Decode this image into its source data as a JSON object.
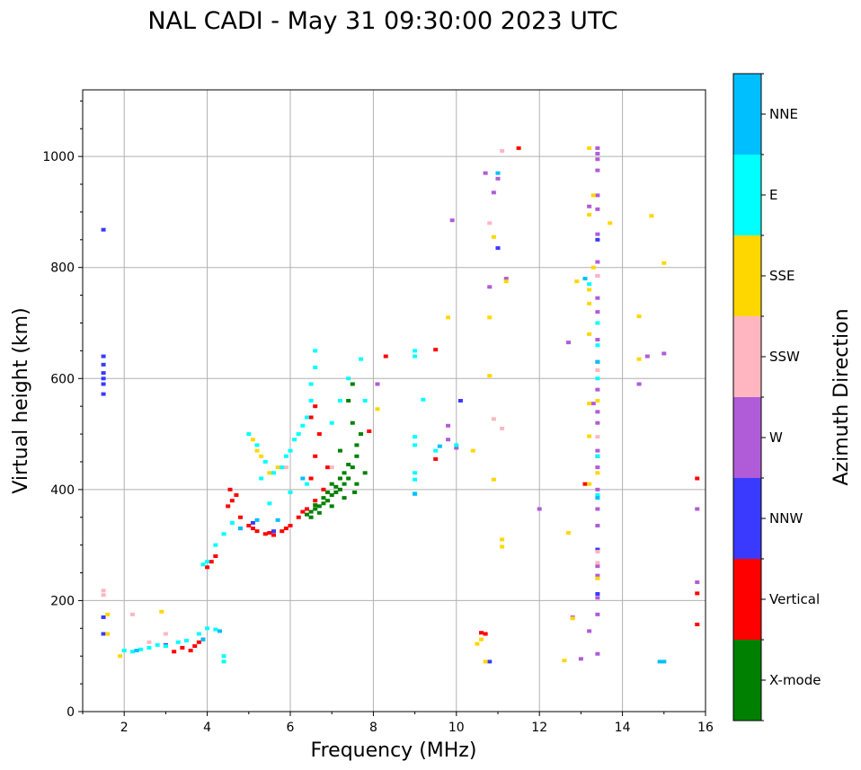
{
  "chart_data": {
    "type": "scatter",
    "title": "NAL CADI - May 31 09:30:00 2023 UTC",
    "xlabel": "Frequency (MHz)",
    "ylabel": "Virtual height (km)",
    "xlim": [
      1,
      16
    ],
    "ylim": [
      0,
      1120
    ],
    "xticks": [
      2,
      4,
      6,
      8,
      10,
      12,
      14,
      16
    ],
    "yticks": [
      0,
      200,
      400,
      600,
      800,
      1000
    ],
    "grid": true,
    "colorbar": {
      "label": "Azimuth Direction",
      "categories": [
        {
          "name": "X-mode",
          "color": "#008000"
        },
        {
          "name": "Vertical",
          "color": "#ff0000"
        },
        {
          "name": "NNW",
          "color": "#3a3aff"
        },
        {
          "name": "W",
          "color": "#b05cd8"
        },
        {
          "name": "SSW",
          "color": "#ffb6c1"
        },
        {
          "name": "SSE",
          "color": "#ffd700"
        },
        {
          "name": "E",
          "color": "#00ffff"
        },
        {
          "name": "NNE",
          "color": "#00bfff"
        }
      ]
    },
    "series": [
      {
        "name": "X-mode",
        "points": [
          [
            6.4,
            355
          ],
          [
            6.5,
            360
          ],
          [
            6.6,
            365
          ],
          [
            6.7,
            370
          ],
          [
            6.8,
            375
          ],
          [
            6.9,
            380
          ],
          [
            7.0,
            390
          ],
          [
            7.1,
            395
          ],
          [
            7.2,
            400
          ],
          [
            7.3,
            410
          ],
          [
            7.4,
            420
          ],
          [
            7.5,
            440
          ],
          [
            7.6,
            460
          ],
          [
            6.6,
            372
          ],
          [
            6.8,
            385
          ],
          [
            7.0,
            410
          ],
          [
            7.2,
            420
          ],
          [
            7.4,
            445
          ],
          [
            7.6,
            480
          ],
          [
            7.7,
            500
          ],
          [
            7.5,
            520
          ],
          [
            7.3,
            430
          ],
          [
            7.1,
            405
          ],
          [
            6.9,
            395
          ],
          [
            7.8,
            430
          ],
          [
            7.4,
            560
          ],
          [
            7.5,
            590
          ],
          [
            7.2,
            470
          ],
          [
            7.6,
            410
          ],
          [
            6.5,
            350
          ],
          [
            6.7,
            358
          ],
          [
            7.0,
            370
          ],
          [
            7.3,
            385
          ],
          [
            7.55,
            395
          ]
        ]
      },
      {
        "name": "Vertical",
        "points": [
          [
            4.5,
            370
          ],
          [
            4.6,
            380
          ],
          [
            4.7,
            390
          ],
          [
            4.8,
            350
          ],
          [
            5.0,
            335
          ],
          [
            5.2,
            325
          ],
          [
            5.4,
            320
          ],
          [
            5.6,
            318
          ],
          [
            5.8,
            325
          ],
          [
            6.0,
            335
          ],
          [
            6.2,
            350
          ],
          [
            6.4,
            365
          ],
          [
            6.6,
            380
          ],
          [
            6.8,
            400
          ],
          [
            6.5,
            420
          ],
          [
            6.6,
            460
          ],
          [
            6.7,
            500
          ],
          [
            6.5,
            530
          ],
          [
            6.6,
            550
          ],
          [
            4.55,
            400
          ],
          [
            5.1,
            330
          ],
          [
            5.5,
            322
          ],
          [
            5.9,
            330
          ],
          [
            6.3,
            360
          ],
          [
            3.6,
            110
          ],
          [
            3.7,
            118
          ],
          [
            3.8,
            125
          ],
          [
            3.9,
            130
          ],
          [
            3.4,
            115
          ],
          [
            3.2,
            108
          ],
          [
            13.1,
            410
          ],
          [
            15.8,
            420
          ],
          [
            15.8,
            213
          ],
          [
            15.8,
            157
          ],
          [
            10.6,
            142
          ],
          [
            10.7,
            140
          ],
          [
            11.5,
            1015
          ],
          [
            9.5,
            455
          ],
          [
            9.5,
            652
          ],
          [
            7.9,
            505
          ],
          [
            8.3,
            640
          ],
          [
            6.9,
            440
          ],
          [
            4.0,
            260
          ],
          [
            4.1,
            270
          ],
          [
            4.2,
            280
          ]
        ]
      },
      {
        "name": "NNW",
        "points": [
          [
            1.5,
            640
          ],
          [
            1.5,
            625
          ],
          [
            1.5,
            610
          ],
          [
            1.5,
            600
          ],
          [
            1.5,
            590
          ],
          [
            1.5,
            572
          ],
          [
            1.5,
            868
          ],
          [
            1.5,
            170
          ],
          [
            1.5,
            140
          ],
          [
            11.0,
            835
          ],
          [
            13.4,
            850
          ],
          [
            13.4,
            292
          ],
          [
            13.4,
            212
          ],
          [
            13.4,
            460
          ],
          [
            10.8,
            90
          ],
          [
            4.8,
            330
          ],
          [
            5.1,
            340
          ],
          [
            10.1,
            560
          ],
          [
            3.0,
            120
          ],
          [
            5.6,
            325
          ]
        ]
      },
      {
        "name": "W",
        "points": [
          [
            13.4,
            1015
          ],
          [
            13.4,
            1005
          ],
          [
            13.4,
            995
          ],
          [
            13.4,
            975
          ],
          [
            13.4,
            930
          ],
          [
            13.4,
            905
          ],
          [
            13.4,
            860
          ],
          [
            13.4,
            810
          ],
          [
            13.4,
            785
          ],
          [
            13.4,
            745
          ],
          [
            13.4,
            720
          ],
          [
            13.4,
            670
          ],
          [
            13.4,
            630
          ],
          [
            13.4,
            580
          ],
          [
            13.4,
            540
          ],
          [
            13.4,
            520
          ],
          [
            13.4,
            470
          ],
          [
            13.4,
            440
          ],
          [
            13.4,
            400
          ],
          [
            13.4,
            365
          ],
          [
            13.4,
            335
          ],
          [
            13.4,
            262
          ],
          [
            13.4,
            245
          ],
          [
            13.4,
            205
          ],
          [
            13.4,
            175
          ],
          [
            13.4,
            104
          ],
          [
            13.2,
            910
          ],
          [
            13.3,
            555
          ],
          [
            12.7,
            665
          ],
          [
            12.8,
            170
          ],
          [
            13.2,
            145
          ],
          [
            13.0,
            95
          ],
          [
            10.7,
            970
          ],
          [
            11.0,
            960
          ],
          [
            10.9,
            935
          ],
          [
            10.8,
            765
          ],
          [
            11.2,
            780
          ],
          [
            14.4,
            590
          ],
          [
            14.6,
            640
          ],
          [
            15.0,
            645
          ],
          [
            15.8,
            365
          ],
          [
            15.8,
            233
          ],
          [
            9.9,
            885
          ],
          [
            9.8,
            490
          ],
          [
            10.0,
            475
          ],
          [
            8.1,
            590
          ],
          [
            12.0,
            365
          ],
          [
            9.8,
            515
          ]
        ]
      },
      {
        "name": "SSW",
        "points": [
          [
            13.4,
            785
          ],
          [
            13.4,
            288
          ],
          [
            13.4,
            268
          ],
          [
            11.1,
            1010
          ],
          [
            10.8,
            880
          ],
          [
            11.1,
            510
          ],
          [
            10.9,
            527
          ],
          [
            13.4,
            615
          ],
          [
            13.4,
            495
          ],
          [
            1.5,
            218
          ],
          [
            1.5,
            210
          ],
          [
            2.2,
            175
          ],
          [
            2.6,
            125
          ],
          [
            3.0,
            140
          ],
          [
            5.9,
            440
          ],
          [
            7.0,
            440
          ]
        ]
      },
      {
        "name": "SSE",
        "points": [
          [
            13.2,
            1015
          ],
          [
            13.3,
            930
          ],
          [
            13.2,
            895
          ],
          [
            13.7,
            880
          ],
          [
            14.7,
            893
          ],
          [
            15.0,
            808
          ],
          [
            13.3,
            800
          ],
          [
            12.9,
            775
          ],
          [
            13.2,
            760
          ],
          [
            13.2,
            735
          ],
          [
            13.2,
            680
          ],
          [
            14.4,
            712
          ],
          [
            14.4,
            635
          ],
          [
            13.2,
            555
          ],
          [
            13.4,
            560
          ],
          [
            13.2,
            496
          ],
          [
            13.4,
            430
          ],
          [
            13.2,
            410
          ],
          [
            13.4,
            240
          ],
          [
            12.7,
            322
          ],
          [
            12.8,
            168
          ],
          [
            12.6,
            92
          ],
          [
            11.1,
            310
          ],
          [
            11.1,
            297
          ],
          [
            10.8,
            710
          ],
          [
            10.8,
            605
          ],
          [
            10.9,
            418
          ],
          [
            10.9,
            855
          ],
          [
            11.2,
            775
          ],
          [
            10.4,
            470
          ],
          [
            10.6,
            130
          ],
          [
            10.5,
            122
          ],
          [
            10.7,
            90
          ],
          [
            9.8,
            710
          ],
          [
            8.1,
            545
          ],
          [
            5.1,
            490
          ],
          [
            5.3,
            460
          ],
          [
            5.5,
            430
          ],
          [
            5.2,
            470
          ],
          [
            5.7,
            440
          ],
          [
            1.9,
            100
          ],
          [
            1.6,
            140
          ],
          [
            1.6,
            175
          ],
          [
            2.9,
            180
          ]
        ]
      },
      {
        "name": "E",
        "points": [
          [
            5.0,
            500
          ],
          [
            5.2,
            480
          ],
          [
            5.4,
            450
          ],
          [
            5.6,
            430
          ],
          [
            5.8,
            440
          ],
          [
            6.0,
            470
          ],
          [
            6.2,
            500
          ],
          [
            6.4,
            530
          ],
          [
            6.5,
            560
          ],
          [
            6.5,
            590
          ],
          [
            6.6,
            620
          ],
          [
            6.6,
            650
          ],
          [
            7.0,
            520
          ],
          [
            7.2,
            560
          ],
          [
            7.4,
            600
          ],
          [
            7.7,
            635
          ],
          [
            7.8,
            560
          ],
          [
            5.3,
            420
          ],
          [
            5.9,
            460
          ],
          [
            6.1,
            490
          ],
          [
            6.3,
            515
          ],
          [
            9.0,
            650
          ],
          [
            9.0,
            640
          ],
          [
            9.0,
            495
          ],
          [
            9.0,
            480
          ],
          [
            9.0,
            430
          ],
          [
            9.0,
            418
          ],
          [
            9.0,
            393
          ],
          [
            9.2,
            562
          ],
          [
            9.5,
            470
          ],
          [
            10.0,
            480
          ],
          [
            13.4,
            700
          ],
          [
            13.4,
            660
          ],
          [
            13.4,
            600
          ],
          [
            13.4,
            460
          ],
          [
            13.4,
            390
          ],
          [
            13.2,
            770
          ],
          [
            2.0,
            110
          ],
          [
            2.2,
            108
          ],
          [
            2.4,
            112
          ],
          [
            2.6,
            115
          ],
          [
            2.8,
            120
          ],
          [
            3.0,
            118
          ],
          [
            3.3,
            125
          ],
          [
            3.5,
            128
          ],
          [
            3.8,
            140
          ],
          [
            4.0,
            150
          ],
          [
            4.2,
            148
          ],
          [
            4.4,
            100
          ],
          [
            4.4,
            90
          ],
          [
            3.9,
            265
          ],
          [
            4.0,
            270
          ],
          [
            4.2,
            300
          ],
          [
            4.4,
            320
          ],
          [
            4.6,
            340
          ],
          [
            5.5,
            375
          ],
          [
            6.0,
            395
          ],
          [
            6.4,
            410
          ]
        ]
      },
      {
        "name": "NNE",
        "points": [
          [
            11.0,
            970
          ],
          [
            13.1,
            780
          ],
          [
            13.4,
            385
          ],
          [
            13.4,
            630
          ],
          [
            15.0,
            90
          ],
          [
            14.9,
            90
          ],
          [
            3.9,
            130
          ],
          [
            2.3,
            110
          ],
          [
            4.3,
            145
          ],
          [
            4.8,
            330
          ],
          [
            5.2,
            345
          ],
          [
            5.7,
            345
          ],
          [
            6.3,
            420
          ],
          [
            9.0,
            392
          ],
          [
            9.6,
            478
          ]
        ]
      }
    ]
  }
}
